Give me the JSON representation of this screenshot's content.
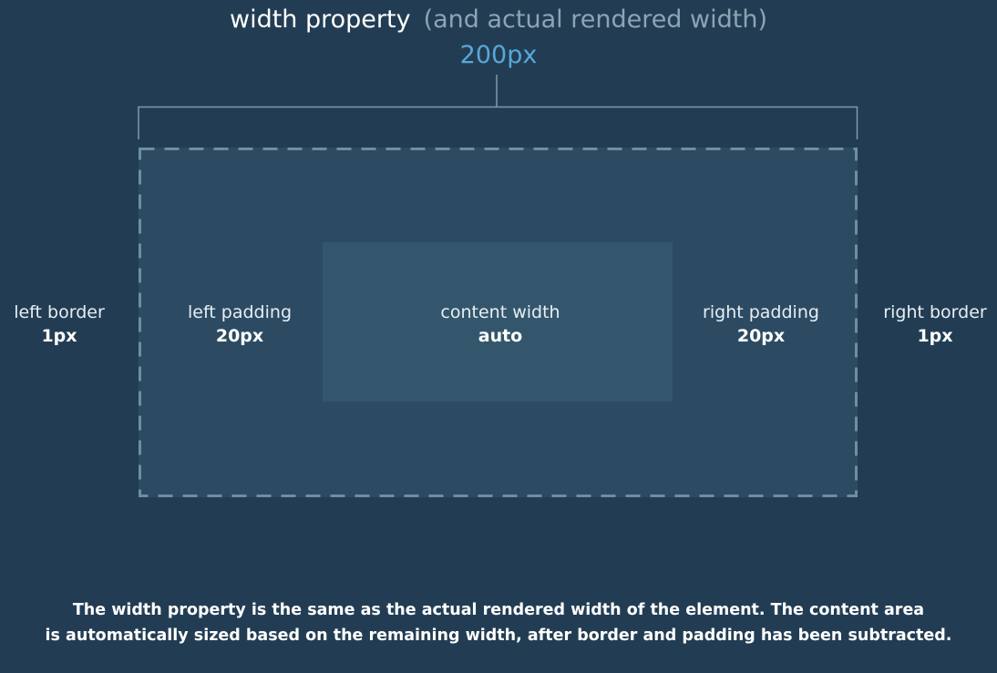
{
  "header": {
    "title": "width property",
    "subtitle": "(and actual rendered width)",
    "value": "200px"
  },
  "labels": {
    "left_border": {
      "name": "left border",
      "value": "1px"
    },
    "left_padding": {
      "name": "left padding",
      "value": "20px"
    },
    "content_width": {
      "name": "content width",
      "value": "auto"
    },
    "right_padding": {
      "name": "right padding",
      "value": "20px"
    },
    "right_border": {
      "name": "right border",
      "value": "1px"
    }
  },
  "caption": {
    "line1": "The width property is the same as the actual rendered width of the element. The content area",
    "line2": "is automatically sized based on the remaining width, after border and padding has been subtracted."
  },
  "colors": {
    "background": "#223d53",
    "box_fill": "#2c4b62",
    "content_fill": "#33566c",
    "dashed_border": "#6d8ea5",
    "accent": "#58a8d8",
    "bracket": "#7f99ad"
  }
}
